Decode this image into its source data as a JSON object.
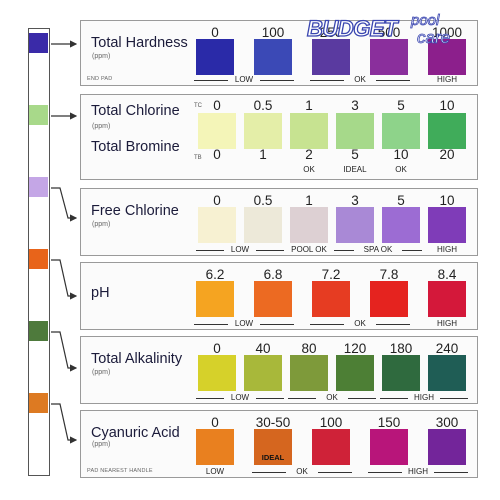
{
  "strip": {
    "pads": [
      "#3a2aa8",
      "#a8d98a",
      "#c4a6e6",
      "#e8641a",
      "#4e7a3c",
      "#dd7a22"
    ]
  },
  "logo": {
    "budget": "BUDGET",
    "pool": "pool",
    "care": "care"
  },
  "tests": [
    {
      "name": "Total Hardness",
      "unit": "(ppm)",
      "note": "END PAD",
      "values": [
        "0",
        "100",
        "250",
        "500",
        "1000"
      ],
      "colors": [
        "#2a2aa8",
        "#3b49b6",
        "#5a3aa0",
        "#8a2f9c",
        "#8c1f8c"
      ],
      "ranges": [
        "LOW",
        "OK",
        "HIGH"
      ]
    },
    {
      "name": "Total Chlorine",
      "unit": "(ppm)",
      "name2": "Total Bromine",
      "tc": "TC",
      "tb": "TB",
      "values": [
        "0",
        "0.5",
        "1",
        "3",
        "5",
        "10"
      ],
      "values2": [
        "0",
        "1",
        "2",
        "5",
        "10",
        "20"
      ],
      "colors": [
        "#f4f5b8",
        "#e4eea8",
        "#c7e391",
        "#a6d98a",
        "#8ed38a",
        "#40ac5a"
      ],
      "ranges": [
        "OK",
        "IDEAL",
        "OK"
      ]
    },
    {
      "name": "Free Chlorine",
      "unit": "(ppm)",
      "values": [
        "0",
        "0.5",
        "1",
        "3",
        "5",
        "10"
      ],
      "colors": [
        "#f7f1d2",
        "#ede9d9",
        "#ddd0d3",
        "#a989d6",
        "#9c6cd3",
        "#7f3cb8"
      ],
      "ranges": [
        "LOW",
        "POOL OK",
        "SPA OK",
        "HIGH"
      ]
    },
    {
      "name": "pH",
      "unit": "",
      "values": [
        "6.2",
        "6.8",
        "7.2",
        "7.8",
        "8.4"
      ],
      "colors": [
        "#f5a421",
        "#ec6a22",
        "#e63c22",
        "#e5231f",
        "#d4183a"
      ],
      "ranges": [
        "LOW",
        "OK",
        "HIGH"
      ]
    },
    {
      "name": "Total Alkalinity",
      "unit": "(ppm)",
      "values": [
        "0",
        "40",
        "80",
        "120",
        "180",
        "240"
      ],
      "colors": [
        "#d6d12a",
        "#a8b83a",
        "#7e9a3a",
        "#4d7f35",
        "#2f6a3e",
        "#1f5d55"
      ],
      "ranges": [
        "LOW",
        "OK",
        "HIGH"
      ]
    },
    {
      "name": "Cyanuric Acid",
      "unit": "(ppm)",
      "note": "PAD NEAREST HANDLE",
      "values": [
        "0",
        "30-50",
        "100",
        "150",
        "300"
      ],
      "colors": [
        "#e9801f",
        "#d5661f",
        "#cf2238",
        "#b8157a",
        "#73259a"
      ],
      "ideal": "IDEAL",
      "ranges": [
        "LOW",
        "OK",
        "HIGH"
      ]
    }
  ]
}
